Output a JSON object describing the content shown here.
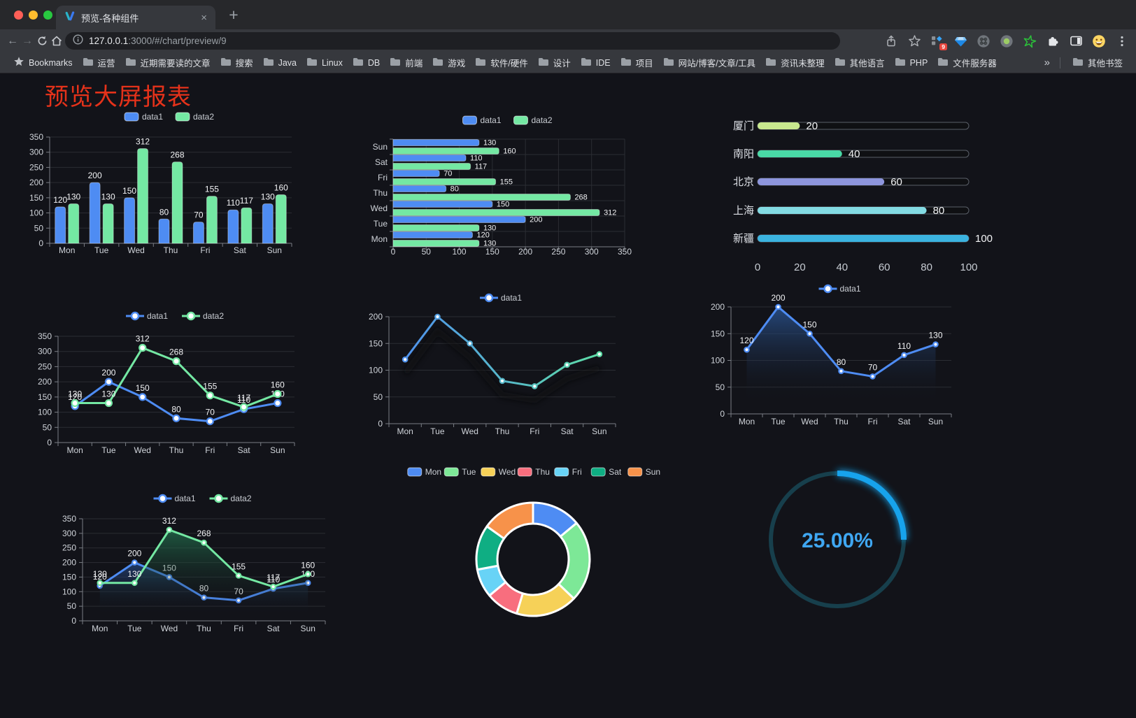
{
  "browser": {
    "traffic_lights": [
      "#ff5f57",
      "#febc2e",
      "#28c840"
    ],
    "tab_title": "预览-各种组件",
    "close_tab": "×",
    "new_tab_button": "+",
    "nav_back": "←",
    "nav_forward": "→",
    "url_host": "127.0.0.1",
    "url_rest": ":3000/#/chart/preview/9",
    "extension_badge": "9",
    "bookmarks_bar": {
      "label": "Bookmarks",
      "folders": [
        "运营",
        "近期需要读的文章",
        "搜索",
        "Java",
        "Linux",
        "DB",
        "前端",
        "游戏",
        "软件/硬件",
        "设计",
        "IDE",
        "项目",
        "网站/博客/文章/工具",
        "资讯未整理",
        "其他语言",
        "PHP",
        "文件服务器"
      ],
      "overflow": "»",
      "other_bookmarks": "其他书签"
    }
  },
  "page": {
    "title": "预览大屏报表",
    "title_color": "#e5321a",
    "background": "#121319"
  },
  "chart_data": [
    {
      "type": "bar",
      "categories": [
        "Mon",
        "Tue",
        "Wed",
        "Thu",
        "Fri",
        "Sat",
        "Sun"
      ],
      "series": [
        {
          "name": "data1",
          "color": "#4e8cf3",
          "values": [
            120,
            200,
            150,
            80,
            70,
            110,
            130
          ]
        },
        {
          "name": "data2",
          "color": "#74e8a3",
          "values": [
            130,
            130,
            312,
            268,
            155,
            117,
            160
          ]
        }
      ],
      "ylim": [
        0,
        350
      ],
      "ystep": 50,
      "legend_position": "top",
      "grid": true
    },
    {
      "type": "hbar",
      "categories": [
        "Mon",
        "Tue",
        "Wed",
        "Thu",
        "Fri",
        "Sat",
        "Sun"
      ],
      "series": [
        {
          "name": "data1",
          "color": "#4e8cf3",
          "values": [
            120,
            200,
            150,
            80,
            70,
            110,
            130
          ]
        },
        {
          "name": "data2",
          "color": "#74e8a3",
          "values": [
            130,
            130,
            312,
            268,
            155,
            117,
            160
          ]
        }
      ],
      "xlim": [
        0,
        350
      ],
      "xstep": 50,
      "legend_position": "top",
      "grid": true
    },
    {
      "type": "progress",
      "max": 100,
      "axis_ticks": [
        0,
        20,
        40,
        60,
        80,
        100
      ],
      "rows": [
        {
          "label": "厦门",
          "value": 20,
          "color": "#c8e88e"
        },
        {
          "label": "南阳",
          "value": 40,
          "color": "#49d9a6"
        },
        {
          "label": "北京",
          "value": 60,
          "color": "#8d95dc"
        },
        {
          "label": "上海",
          "value": 80,
          "color": "#83dbe3"
        },
        {
          "label": "新疆",
          "value": 100,
          "color": "#3bb3df"
        }
      ]
    },
    {
      "type": "line",
      "categories": [
        "Mon",
        "Tue",
        "Wed",
        "Thu",
        "Fri",
        "Sat",
        "Sun"
      ],
      "series": [
        {
          "name": "data1",
          "color": "#4e8cf3",
          "values": [
            120,
            200,
            150,
            80,
            70,
            110,
            130
          ]
        },
        {
          "name": "data2",
          "color": "#74e8a3",
          "values": [
            130,
            130,
            312,
            268,
            155,
            117,
            160
          ]
        }
      ],
      "ylim": [
        0,
        350
      ],
      "ystep": 50,
      "labels": true,
      "legend_position": "top",
      "grid": true
    },
    {
      "type": "line",
      "categories": [
        "Mon",
        "Tue",
        "Wed",
        "Thu",
        "Fri",
        "Sat",
        "Sun"
      ],
      "series": [
        {
          "name": "data1",
          "gradient": [
            "#4e8cf3",
            "#5fe3a1"
          ],
          "values": [
            120,
            200,
            150,
            80,
            70,
            110,
            130
          ]
        }
      ],
      "ylim": [
        0,
        200
      ],
      "ystep": 50,
      "labels": false,
      "shadow": true,
      "legend_position": "top",
      "grid": true
    },
    {
      "type": "line",
      "categories": [
        "Mon",
        "Tue",
        "Wed",
        "Thu",
        "Fri",
        "Sat",
        "Sun"
      ],
      "series": [
        {
          "name": "data1",
          "color": "#4e8cf3",
          "values": [
            120,
            200,
            150,
            80,
            70,
            110,
            130
          ],
          "area": [
            "rgba(45,92,160,0.75)",
            "rgba(18,19,25,0)"
          ]
        }
      ],
      "ylim": [
        0,
        200
      ],
      "ystep": 50,
      "labels": true,
      "legend_position": "top",
      "grid": true
    },
    {
      "type": "line",
      "categories": [
        "Mon",
        "Tue",
        "Wed",
        "Thu",
        "Fri",
        "Sat",
        "Sun"
      ],
      "series": [
        {
          "name": "data1",
          "color": "#4e8cf3",
          "values": [
            120,
            200,
            150,
            80,
            70,
            110,
            130
          ],
          "area": [
            "rgba(40,80,150,0.65)",
            "rgba(18,19,25,0)"
          ]
        },
        {
          "name": "data2",
          "color": "#74e8a3",
          "values": [
            130,
            130,
            312,
            268,
            155,
            117,
            160
          ],
          "area": [
            "rgba(36,120,82,0.7)",
            "rgba(18,19,25,0)"
          ]
        }
      ],
      "ylim": [
        0,
        350
      ],
      "ystep": 50,
      "labels": true,
      "legend_position": "top",
      "grid": true
    },
    {
      "type": "pie",
      "donut": true,
      "legend_position": "top",
      "slices": [
        {
          "label": "Mon",
          "value": 120,
          "color": "#4e8cf3"
        },
        {
          "label": "Tue",
          "value": 200,
          "color": "#7de897"
        },
        {
          "label": "Wed",
          "value": 150,
          "color": "#f6d158"
        },
        {
          "label": "Thu",
          "value": 80,
          "color": "#f86e7e"
        },
        {
          "label": "Fri",
          "value": 70,
          "color": "#68d3f6"
        },
        {
          "label": "Sat",
          "value": 110,
          "color": "#0fae83"
        },
        {
          "label": "Sun",
          "value": 130,
          "color": "#f7924a"
        }
      ]
    },
    {
      "type": "gauge",
      "value": 25,
      "max": 100,
      "display": "25.00%",
      "color": "#17a3ec",
      "track_color": "#173f4c",
      "text_color": "#3fa7f2"
    }
  ]
}
